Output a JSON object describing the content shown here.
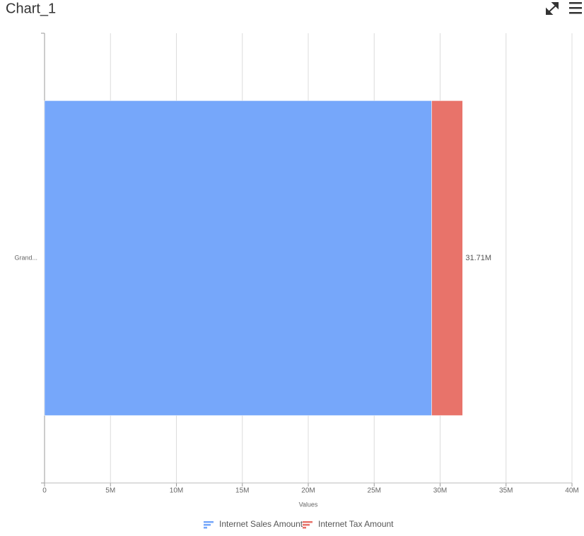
{
  "chart_data": {
    "type": "stacked_bar_horizontal",
    "title": "Chart_1",
    "categories": [
      "Grand..."
    ],
    "series": [
      {
        "name": "Internet Sales Amount",
        "color": "#76a7fa",
        "values": [
          29358677
        ]
      },
      {
        "name": "Internet Tax Amount",
        "color": "#e8736a",
        "values": [
          2348694
        ]
      }
    ],
    "totals": [
      31707371
    ],
    "total_labels": [
      "31.71M"
    ],
    "x_label": "Values",
    "xlim": [
      0,
      40000000
    ],
    "xticks": [
      0,
      {
        "value": 5000000,
        "label": "5M"
      },
      {
        "value": 10000000,
        "label": "10M"
      },
      {
        "value": 15000000,
        "label": "15M"
      },
      {
        "value": 20000000,
        "label": "20M"
      },
      {
        "value": 25000000,
        "label": "25M"
      },
      {
        "value": 30000000,
        "label": "30M"
      },
      {
        "value": 35000000,
        "label": "35M"
      },
      {
        "value": 40000000,
        "label": "40M"
      }
    ],
    "grid": true,
    "legend": "bottom"
  }
}
